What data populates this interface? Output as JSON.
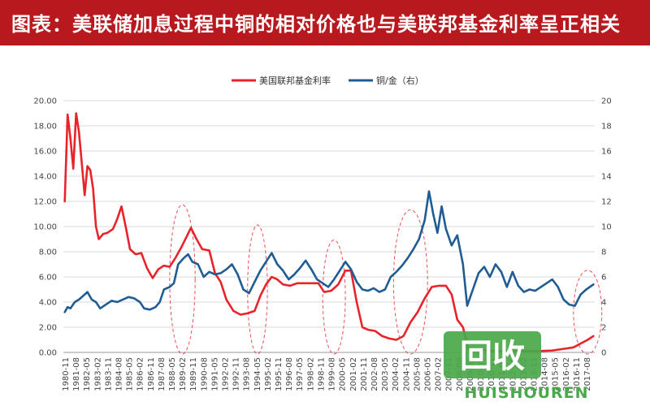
{
  "header": {
    "title": "图表：美联储加息过程中铜的相对价格也与美联邦基金利率呈正相关"
  },
  "chart_data": {
    "type": "line",
    "title": "图表：美联储加息过程中铜的相对价格也与美联邦基金利率呈正相关",
    "legend": [
      "美国联邦基金利率",
      "铜/金（右）"
    ],
    "legend_position": "top-center",
    "grid": true,
    "ylim_left": [
      0,
      20
    ],
    "ylim_right": [
      0,
      20
    ],
    "y_ticks_left": [
      "0.00",
      "2.00",
      "4.00",
      "6.00",
      "8.00",
      "10.00",
      "12.00",
      "14.00",
      "16.00",
      "18.00",
      "20.00"
    ],
    "y_ticks_right": [
      "0",
      "2",
      "4",
      "6",
      "8",
      "10",
      "12",
      "14",
      "16",
      "18",
      "20"
    ],
    "x_ticks": [
      "1980-11",
      "1981-08",
      "1982-05",
      "1983-02",
      "1983-11",
      "1984-08",
      "1985-05",
      "1986-02",
      "1986-11",
      "1987-08",
      "1988-05",
      "1989-02",
      "1989-11",
      "1990-08",
      "1991-05",
      "1992-02",
      "1992-11",
      "1993-08",
      "1994-05",
      "1995-02",
      "1995-11",
      "1996-08",
      "1997-05",
      "1998-02",
      "1998-11",
      "1999-08",
      "2000-05",
      "2001-02",
      "2001-11",
      "2002-08",
      "2003-05",
      "2004-02",
      "2004-11",
      "2005-08",
      "2006-05",
      "2007-02",
      "2007-11",
      "2008-08",
      "2009-05",
      "2010-02",
      "2010-11",
      "2011-08",
      "2012-05",
      "2013-02",
      "2013-11",
      "2014-08",
      "2015-05",
      "2016-02",
      "2016-11",
      "2017-08"
    ],
    "series": [
      {
        "name": "美国联邦基金利率",
        "color": "#e8232a",
        "x": [
          1980.6,
          1980.8,
          1981.0,
          1981.2,
          1981.4,
          1981.6,
          1981.8,
          1982.0,
          1982.2,
          1982.4,
          1982.6,
          1982.8,
          1983.0,
          1983.3,
          1983.6,
          1984.0,
          1984.3,
          1984.6,
          1984.9,
          1985.2,
          1985.6,
          1986.0,
          1986.4,
          1986.8,
          1987.2,
          1987.6,
          1988.0,
          1988.4,
          1988.8,
          1989.2,
          1989.5,
          1989.9,
          1990.3,
          1990.8,
          1991.2,
          1991.6,
          1992.0,
          1992.5,
          1993.0,
          1993.5,
          1994.0,
          1994.4,
          1994.8,
          1995.2,
          1995.6,
          1996.0,
          1996.5,
          1997.0,
          1997.5,
          1998.0,
          1998.5,
          1998.9,
          1999.4,
          1999.9,
          2000.4,
          2000.8,
          2001.2,
          2001.6,
          2002.0,
          2002.5,
          2003.0,
          2003.5,
          2004.0,
          2004.5,
          2005.0,
          2005.5,
          2006.0,
          2006.5,
          2007.0,
          2007.5,
          2007.9,
          2008.3,
          2008.7,
          2009.1,
          2010.0,
          2011.0,
          2012.0,
          2013.0,
          2014.0,
          2015.0,
          2015.9,
          2016.5,
          2017.0,
          2017.5,
          2017.9
        ],
        "values": [
          12.0,
          18.9,
          17.0,
          14.6,
          19.0,
          17.5,
          15.0,
          12.5,
          14.8,
          14.5,
          13.0,
          10.0,
          9.0,
          9.4,
          9.5,
          9.8,
          10.6,
          11.6,
          10.0,
          8.2,
          7.8,
          7.9,
          6.7,
          5.9,
          6.6,
          6.9,
          6.8,
          7.5,
          8.3,
          9.2,
          9.9,
          9.0,
          8.2,
          8.1,
          6.3,
          5.6,
          4.2,
          3.3,
          3.0,
          3.1,
          3.3,
          4.5,
          5.4,
          6.0,
          5.8,
          5.4,
          5.3,
          5.5,
          5.5,
          5.5,
          5.5,
          4.8,
          4.9,
          5.4,
          6.5,
          6.5,
          4.0,
          2.0,
          1.8,
          1.7,
          1.3,
          1.1,
          1.0,
          1.3,
          2.4,
          3.2,
          4.3,
          5.2,
          5.3,
          5.3,
          4.6,
          2.6,
          2.0,
          0.2,
          0.2,
          0.1,
          0.15,
          0.1,
          0.1,
          0.15,
          0.3,
          0.4,
          0.7,
          1.0,
          1.3
        ]
      },
      {
        "name": "铜/金（右）",
        "color": "#1f5c93",
        "x": [
          1980.6,
          1980.8,
          1981.0,
          1981.3,
          1981.6,
          1981.9,
          1982.2,
          1982.5,
          1982.8,
          1983.1,
          1983.5,
          1983.9,
          1984.3,
          1984.7,
          1985.1,
          1985.5,
          1985.9,
          1986.2,
          1986.6,
          1987.0,
          1987.3,
          1987.6,
          1988.0,
          1988.3,
          1988.6,
          1989.0,
          1989.3,
          1989.6,
          1990.0,
          1990.4,
          1990.8,
          1991.2,
          1991.6,
          1992.0,
          1992.4,
          1992.8,
          1993.2,
          1993.6,
          1994.0,
          1994.4,
          1994.8,
          1995.2,
          1995.6,
          1996.0,
          1996.4,
          1996.8,
          1997.2,
          1997.6,
          1998.0,
          1998.4,
          1998.8,
          1999.2,
          1999.6,
          2000.0,
          2000.4,
          2000.8,
          2001.2,
          2001.6,
          2002.0,
          2002.4,
          2002.8,
          2003.2,
          2003.6,
          2004.0,
          2004.4,
          2004.8,
          2005.2,
          2005.6,
          2006.0,
          2006.3,
          2006.6,
          2006.9,
          2007.2,
          2007.5,
          2007.9,
          2008.3,
          2008.7,
          2009.0,
          2009.4,
          2009.8,
          2010.2,
          2010.6,
          2011.0,
          2011.4,
          2011.8,
          2012.2,
          2012.6,
          2013.0,
          2013.4,
          2013.8,
          2014.2,
          2014.6,
          2015.0,
          2015.4,
          2015.8,
          2016.2,
          2016.6,
          2017.0,
          2017.4,
          2017.9
        ],
        "values": [
          3.2,
          3.6,
          3.5,
          4.0,
          4.2,
          4.5,
          4.8,
          4.2,
          4.0,
          3.5,
          3.8,
          4.1,
          4.0,
          4.2,
          4.4,
          4.3,
          4.0,
          3.5,
          3.4,
          3.6,
          4.0,
          5.0,
          5.2,
          5.5,
          7.0,
          7.5,
          7.8,
          7.2,
          7.0,
          6.0,
          6.4,
          6.2,
          6.3,
          6.6,
          7.0,
          6.2,
          5.0,
          4.7,
          5.6,
          6.5,
          7.2,
          7.9,
          7.0,
          6.5,
          5.8,
          6.2,
          6.7,
          7.3,
          6.6,
          5.8,
          5.5,
          5.2,
          5.8,
          6.5,
          7.2,
          6.6,
          5.6,
          5.0,
          4.9,
          5.1,
          4.8,
          5.0,
          6.0,
          6.4,
          6.9,
          7.5,
          8.2,
          9.0,
          10.5,
          12.8,
          11.0,
          9.5,
          11.6,
          9.8,
          8.5,
          9.3,
          7.0,
          3.7,
          5.0,
          6.3,
          6.8,
          6.0,
          7.0,
          6.4,
          5.2,
          6.4,
          5.3,
          4.8,
          5.0,
          4.9,
          5.2,
          5.5,
          5.8,
          5.2,
          4.2,
          3.8,
          3.7,
          4.6,
          5.0,
          5.4
        ]
      }
    ],
    "annotations": "dashed red ellipses highlighting rate-hike periods"
  },
  "watermark": {
    "logo_text": "回收",
    "sub_text": "HUISHOUREN"
  }
}
